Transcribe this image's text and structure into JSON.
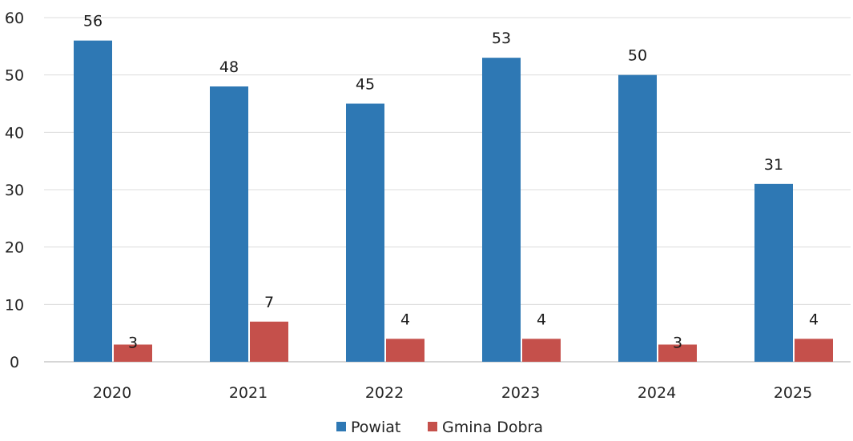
{
  "chart_data": {
    "type": "bar",
    "categories": [
      "2020",
      "2021",
      "2022",
      "2023",
      "2024",
      "2025"
    ],
    "series": [
      {
        "name": "Powiat",
        "values": [
          56,
          48,
          45,
          53,
          50,
          31
        ],
        "color": "#2e78b4"
      },
      {
        "name": "Gmina Dobra",
        "values": [
          3,
          7,
          4,
          4,
          3,
          4
        ],
        "color": "#c5504b"
      }
    ],
    "ylim": [
      0,
      60
    ],
    "yticks": [
      "0",
      "10",
      "20",
      "30",
      "40",
      "50",
      "60"
    ],
    "grid": true,
    "legend": "bottom-center",
    "title": "",
    "xlabel": "",
    "ylabel": ""
  }
}
